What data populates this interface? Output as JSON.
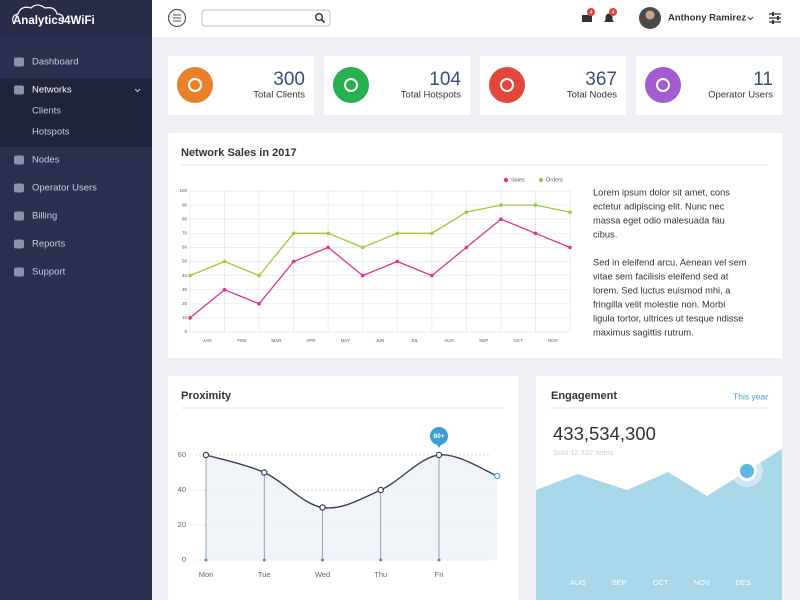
{
  "brand": "Analytics4WiFi",
  "sidebar": {
    "items": [
      {
        "label": "Dashboard"
      },
      {
        "label": "Networks",
        "children": [
          "Clients",
          "Hotspots"
        ]
      },
      {
        "label": "Nodes"
      },
      {
        "label": "Operator Users"
      },
      {
        "label": "Billing"
      },
      {
        "label": "Reports"
      },
      {
        "label": "Support"
      }
    ]
  },
  "header": {
    "user": "Anthony Ramirez",
    "badges": [
      4,
      4
    ]
  },
  "stats": [
    {
      "value": 300,
      "label": "Total Clients",
      "color": "#e8822a"
    },
    {
      "value": 104,
      "label": "Total Hotspots",
      "color": "#27b04f"
    },
    {
      "value": 367,
      "label": "Total Nodes",
      "color": "#e5463b"
    },
    {
      "value": 11,
      "label": "Operator Users",
      "color": "#a45bd0"
    }
  ],
  "chart_data": [
    {
      "type": "line",
      "title": "Network Sales in 2017",
      "categories": [
        "JAN",
        "FEB",
        "MAR",
        "APR",
        "MAY",
        "JUN",
        "JUL",
        "AUG",
        "SEP",
        "OCT",
        "NOV",
        null
      ],
      "series": [
        {
          "name": "Sales",
          "color": "#e3318c",
          "values": [
            10,
            30,
            20,
            50,
            60,
            40,
            50,
            40,
            60,
            80,
            70,
            60
          ]
        },
        {
          "name": "Orders",
          "color": "#9ccc3c",
          "values": [
            40,
            50,
            40,
            70,
            70,
            60,
            70,
            70,
            85,
            90,
            90,
            85
          ]
        }
      ],
      "ylim": [
        0,
        100
      ],
      "yticks": [
        0,
        10,
        20,
        30,
        40,
        50,
        60,
        70,
        80,
        90,
        100
      ],
      "grid": true,
      "legend": "top-right"
    },
    {
      "type": "smooth-line",
      "title": "Proximity",
      "categories": [
        "Mon",
        "Tue",
        "Wed",
        "Thu",
        "Fri",
        null
      ],
      "values": [
        60,
        50,
        30,
        40,
        60,
        48
      ],
      "color": "#3a3f4f",
      "ylim": [
        0,
        60
      ],
      "yticks": [
        0,
        20,
        40,
        60
      ],
      "grid": true,
      "annotations": [
        {
          "text": "60+",
          "x": "Fri"
        }
      ]
    }
  ],
  "text_block": {
    "paragraphs": [
      [
        "Lorem ipsum dolor sit amet, cons",
        "ectetur adipiscing elit. Nunc nec",
        "massa eget odio malesuada fau",
        "cibus."
      ],
      [
        "Sed in eleifend arcu. Aenean vel sem",
        "vitae sem facilisis eleifend sed at",
        "lorem. Sed luctus euismod mhi, a",
        "fringilla velit molestie non. Morbi",
        "ligula tortor, ultrices ut tesque ndisse",
        "maximus sagittis rutrum."
      ]
    ]
  },
  "engagement": {
    "title": "Engagement",
    "period": "This year",
    "value": "433,534,300",
    "subtitle": "Sold 12,332 Items",
    "months": [
      "AUG",
      "SEP",
      "OCT",
      "NOV",
      "DES"
    ]
  }
}
